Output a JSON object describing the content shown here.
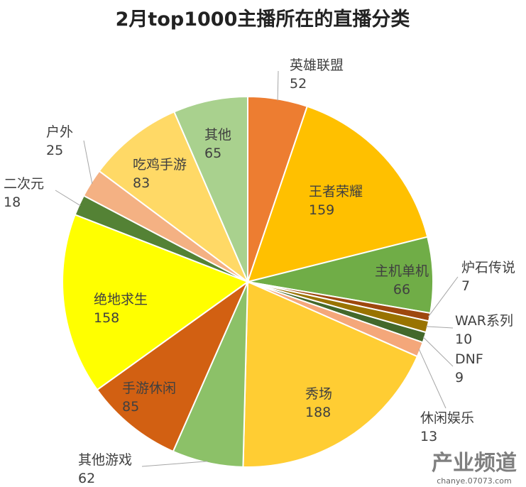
{
  "chart_data": {
    "type": "pie",
    "title": "2月top1000主播所在的直播分类",
    "categories": [
      "英雄联盟",
      "王者荣耀",
      "主机单机",
      "炉石传说",
      "WAR系列",
      "DNF",
      "休闲娱乐",
      "秀场",
      "其他游戏",
      "手游休闲",
      "绝地求生",
      "二次元",
      "户外",
      "吃鸡手游",
      "其他"
    ],
    "values": [
      52,
      159,
      66,
      7,
      10,
      9,
      13,
      188,
      62,
      85,
      158,
      18,
      25,
      83,
      65
    ],
    "colors": [
      "#ED7D31",
      "#FFC000",
      "#70AD47",
      "#9E480E",
      "#997300",
      "#43682B",
      "#F4A77A",
      "#FFCD33",
      "#8CC168",
      "#D26012",
      "#FFFF00",
      "#548235",
      "#F4B183",
      "#FFD966",
      "#A9D18E"
    ]
  },
  "watermark": {
    "title": "产业频道",
    "url": "chanye.07073.com"
  }
}
